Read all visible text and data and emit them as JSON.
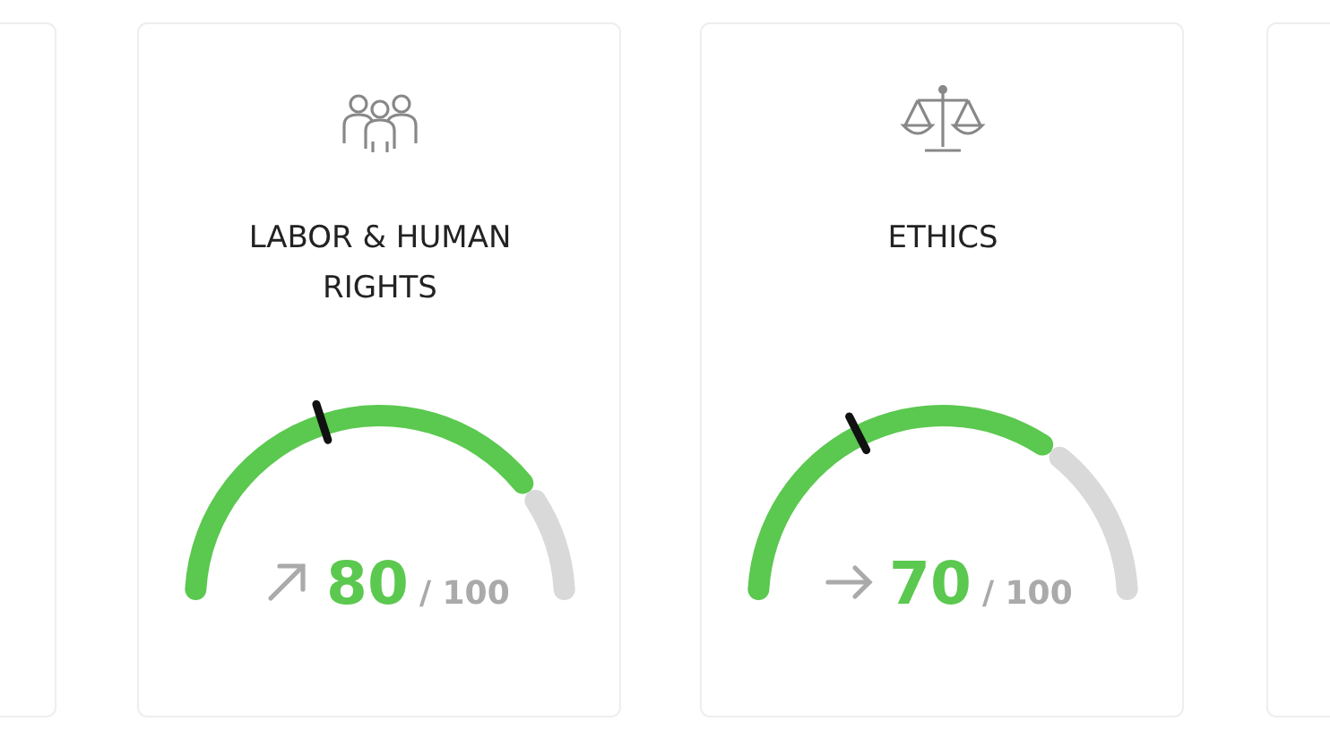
{
  "chart_data": [
    {
      "type": "donut",
      "title": "LABOR & HUMAN RIGHTS",
      "categories": [
        null,
        null
      ],
      "values": [
        80,
        20
      ],
      "colors": [
        "#5bc84f",
        "#d9d9d9"
      ],
      "annotations": [
        "80",
        "/ 100"
      ]
    },
    {
      "type": "donut",
      "title": "ETHICS",
      "categories": [
        null,
        null
      ],
      "values": [
        70,
        30
      ],
      "colors": [
        "#5bc84f",
        "#d9d9d9"
      ],
      "annotations": [
        "70",
        "/ 100"
      ]
    }
  ]
}
